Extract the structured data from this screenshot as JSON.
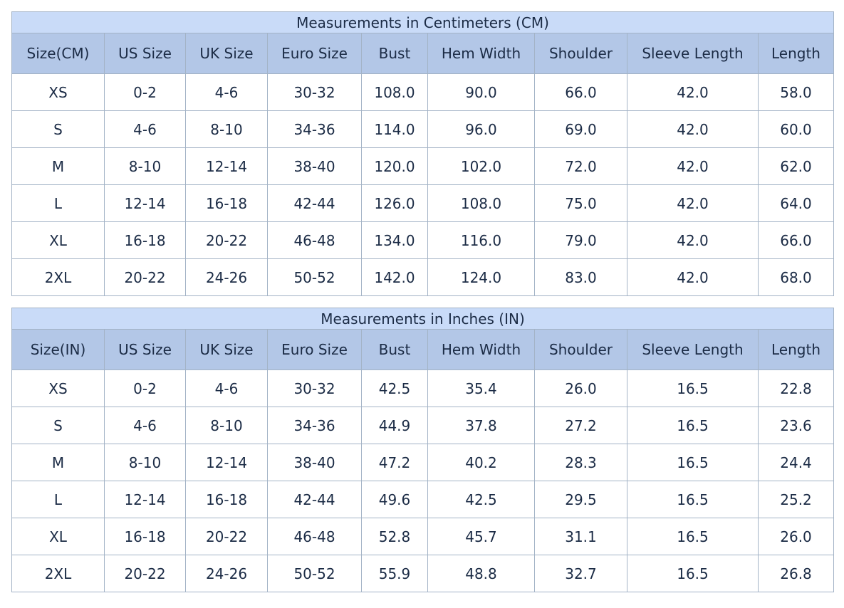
{
  "tables": [
    {
      "title": "Measurements in Centimeters (CM)",
      "headers": [
        "Size(CM)",
        "US Size",
        "UK Size",
        "Euro Size",
        "Bust",
        "Hem Width",
        "Shoulder",
        "Sleeve Length",
        "Length"
      ],
      "rows": [
        [
          "XS",
          "0-2",
          "4-6",
          "30-32",
          "108.0",
          "90.0",
          "66.0",
          "42.0",
          "58.0"
        ],
        [
          "S",
          "4-6",
          "8-10",
          "34-36",
          "114.0",
          "96.0",
          "69.0",
          "42.0",
          "60.0"
        ],
        [
          "M",
          "8-10",
          "12-14",
          "38-40",
          "120.0",
          "102.0",
          "72.0",
          "42.0",
          "62.0"
        ],
        [
          "L",
          "12-14",
          "16-18",
          "42-44",
          "126.0",
          "108.0",
          "75.0",
          "42.0",
          "64.0"
        ],
        [
          "XL",
          "16-18",
          "20-22",
          "46-48",
          "134.0",
          "116.0",
          "79.0",
          "42.0",
          "66.0"
        ],
        [
          "2XL",
          "20-22",
          "24-26",
          "50-52",
          "142.0",
          "124.0",
          "83.0",
          "42.0",
          "68.0"
        ]
      ]
    },
    {
      "title": "Measurements in Inches (IN)",
      "headers": [
        "Size(IN)",
        "US Size",
        "UK Size",
        "Euro Size",
        "Bust",
        "Hem Width",
        "Shoulder",
        "Sleeve Length",
        "Length"
      ],
      "rows": [
        [
          "XS",
          "0-2",
          "4-6",
          "30-32",
          "42.5",
          "35.4",
          "26.0",
          "16.5",
          "22.8"
        ],
        [
          "S",
          "4-6",
          "8-10",
          "34-36",
          "44.9",
          "37.8",
          "27.2",
          "16.5",
          "23.6"
        ],
        [
          "M",
          "8-10",
          "12-14",
          "38-40",
          "47.2",
          "40.2",
          "28.3",
          "16.5",
          "24.4"
        ],
        [
          "L",
          "12-14",
          "16-18",
          "42-44",
          "49.6",
          "42.5",
          "29.5",
          "16.5",
          "25.2"
        ],
        [
          "XL",
          "16-18",
          "20-22",
          "46-48",
          "52.8",
          "45.7",
          "31.1",
          "16.5",
          "26.0"
        ],
        [
          "2XL",
          "20-22",
          "24-26",
          "50-52",
          "55.9",
          "48.8",
          "32.7",
          "16.5",
          "26.8"
        ]
      ]
    }
  ]
}
